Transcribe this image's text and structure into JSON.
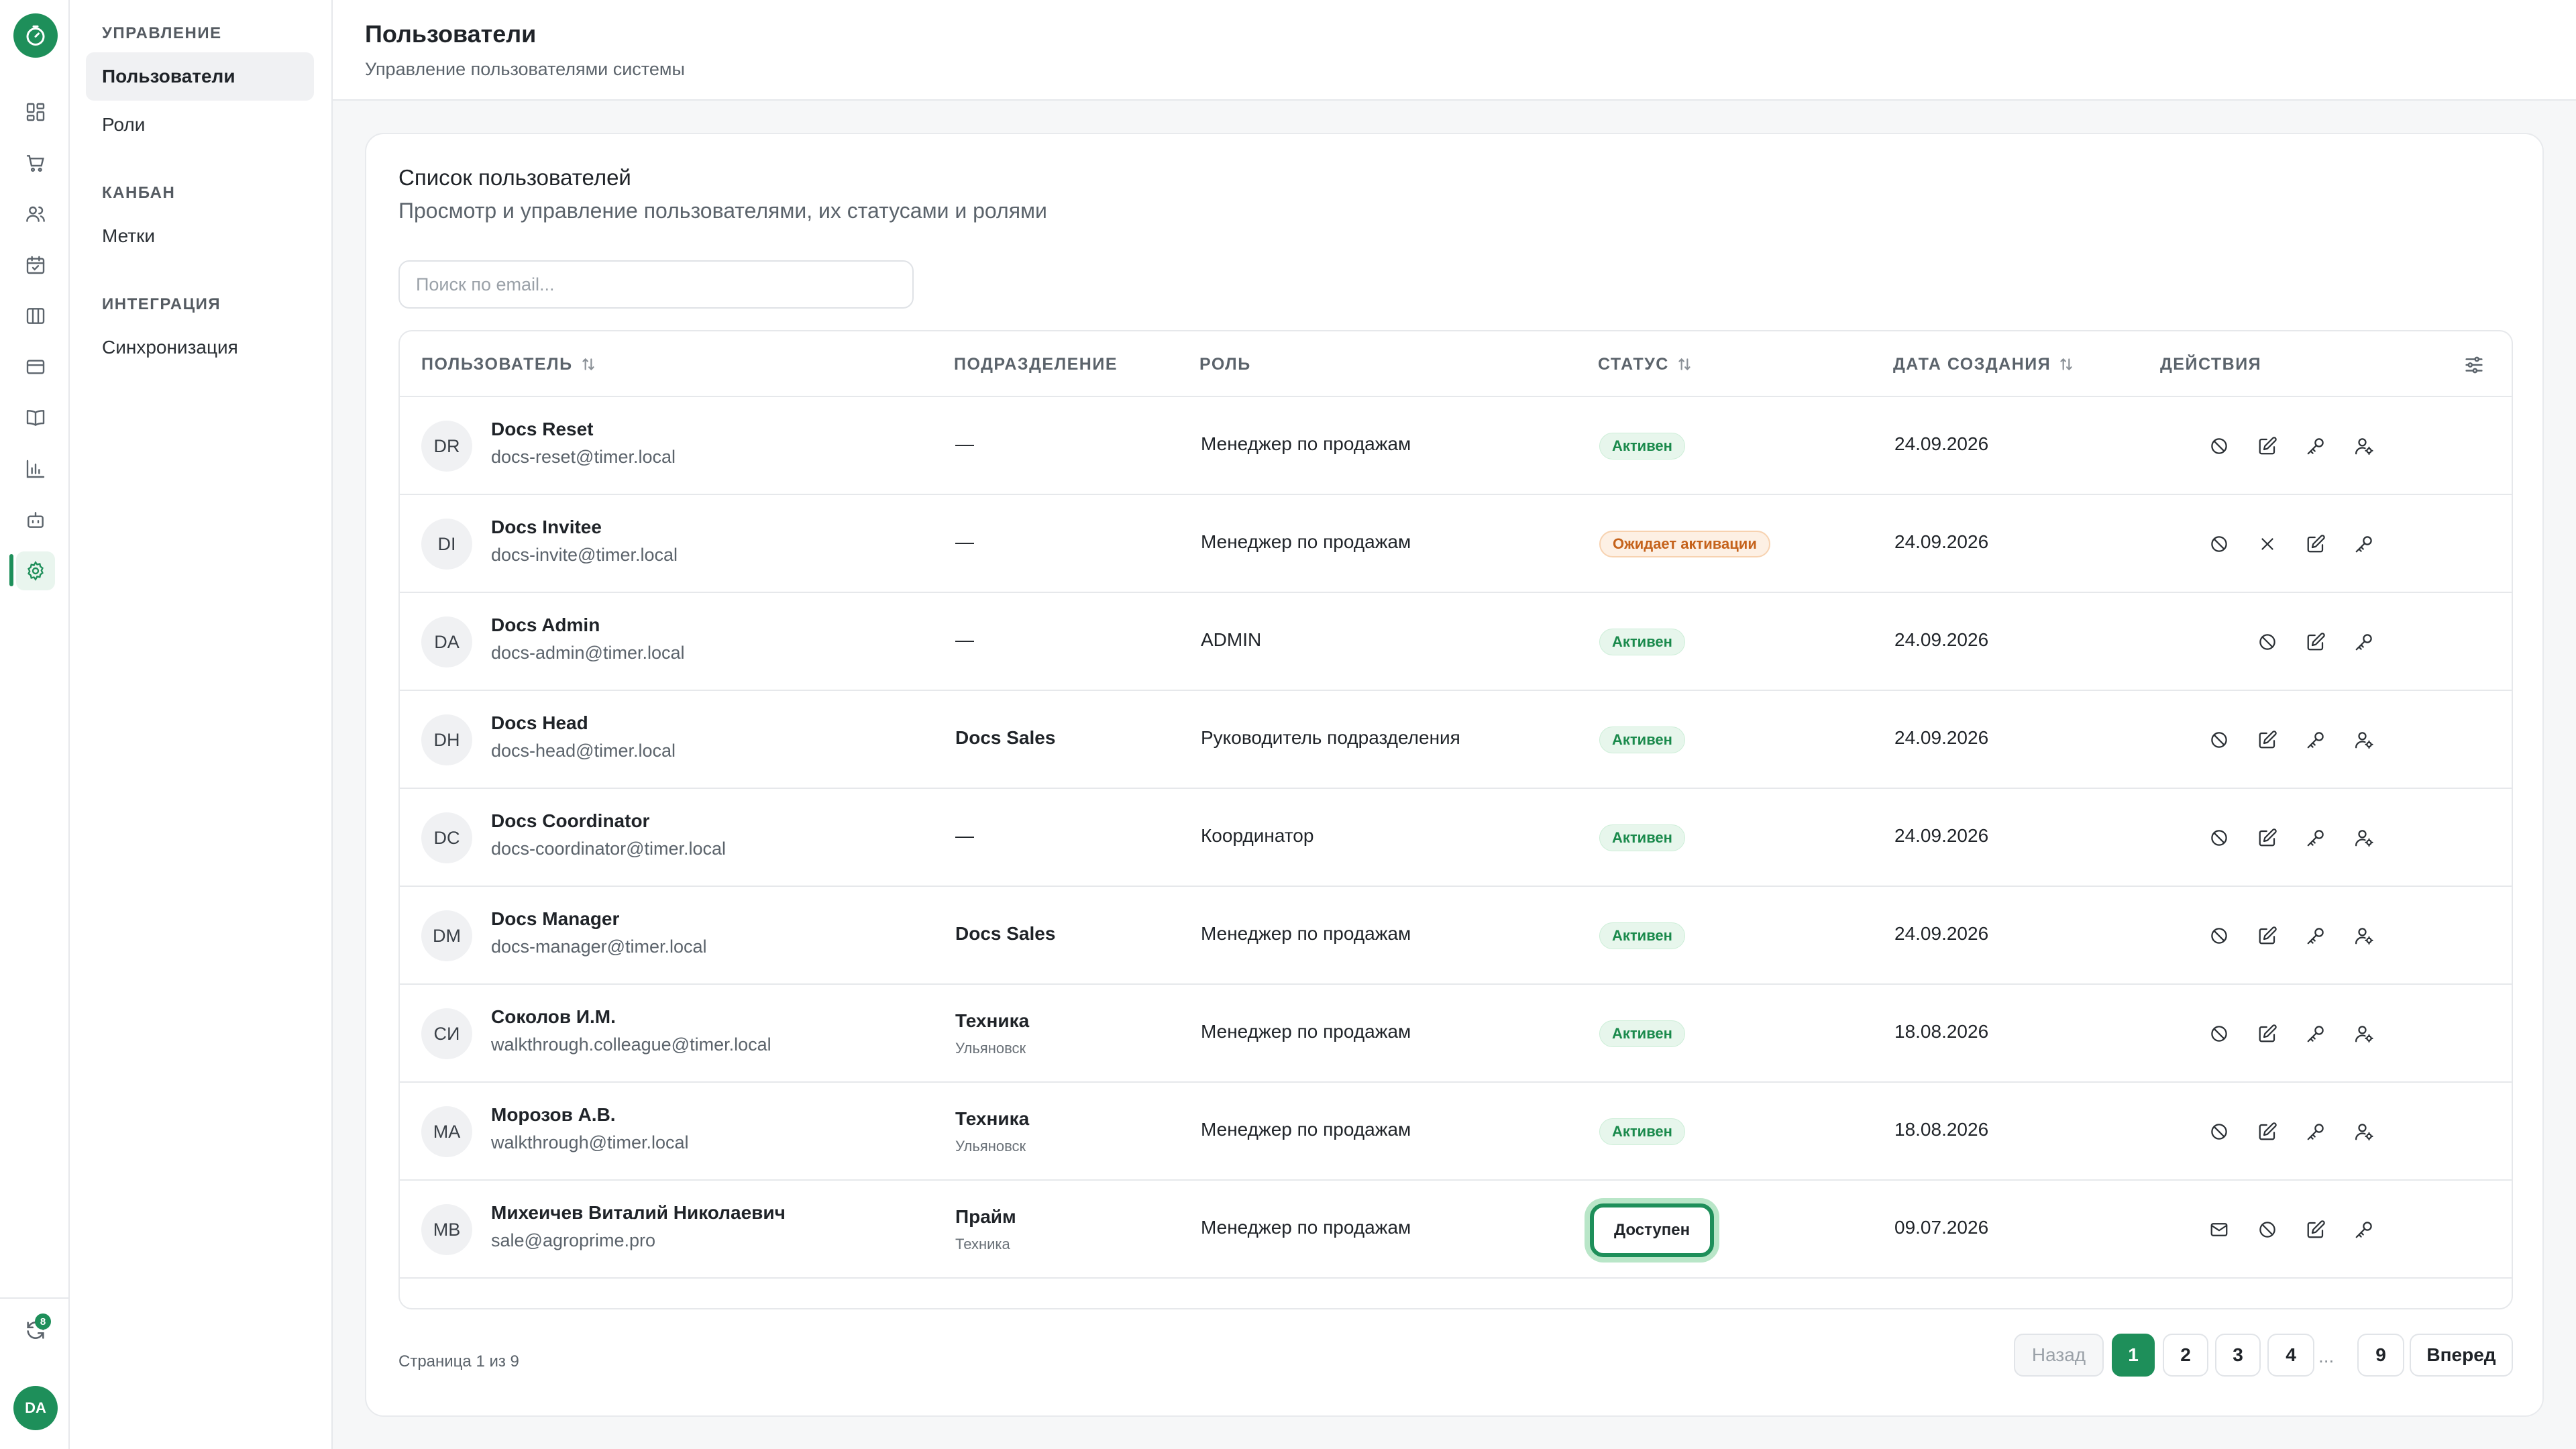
{
  "sidebar": {
    "sections": [
      {
        "title": "УПРАВЛЕНИЕ",
        "items": [
          {
            "label": "Пользователи"
          },
          {
            "label": "Роли"
          }
        ]
      },
      {
        "title": "КАНБАН",
        "items": [
          {
            "label": "Метки"
          }
        ]
      },
      {
        "title": "ИНТЕГРАЦИЯ",
        "items": [
          {
            "label": "Синхронизация"
          }
        ]
      }
    ]
  },
  "rail": {
    "icons": [
      "timer-logo-icon",
      "dashboard-icon",
      "cart-icon",
      "users-icon",
      "calendar-check-icon",
      "columns-icon",
      "card-icon",
      "book-icon",
      "bar-chart-icon",
      "bot-icon",
      "settings-icon"
    ],
    "sync_badge": "8",
    "user_initials": "DA"
  },
  "header": {
    "title": "Пользователи",
    "subtitle": "Управление пользователями системы"
  },
  "card": {
    "title": "Список пользователей",
    "subtitle": "Просмотр и управление пользователями, их статусами и ролями",
    "search_placeholder": "Поиск по email..."
  },
  "table": {
    "columns": {
      "user": "ПОЛЬЗОВАТЕЛЬ",
      "dept": "ПОДРАЗДЕЛЕНИЕ",
      "role": "РОЛЬ",
      "status": "СТАТУС",
      "created": "ДАТА СОЗДАНИЯ",
      "actions": "ДЕЙСТВИЯ"
    },
    "rows": [
      {
        "initials": "DR",
        "name": "Docs Reset",
        "email": "docs-reset@timer.local",
        "dept": "—",
        "dept_sub": "",
        "role": "Менеджер по продажам",
        "status": "Активен",
        "created": "24.09.2026"
      },
      {
        "initials": "DI",
        "name": "Docs Invitee",
        "email": "docs-invite@timer.local",
        "dept": "—",
        "dept_sub": "",
        "role": "Менеджер по продажам",
        "status": "Ожидает активации",
        "created": "24.09.2026"
      },
      {
        "initials": "DA",
        "name": "Docs Admin",
        "email": "docs-admin@timer.local",
        "dept": "—",
        "dept_sub": "",
        "role": "ADMIN",
        "status": "Активен",
        "created": "24.09.2026"
      },
      {
        "initials": "DH",
        "name": "Docs Head",
        "email": "docs-head@timer.local",
        "dept": "Docs Sales",
        "dept_sub": "",
        "role": "Руководитель подразделения",
        "status": "Активен",
        "created": "24.09.2026"
      },
      {
        "initials": "DC",
        "name": "Docs Coordinator",
        "email": "docs-coordinator@timer.local",
        "dept": "—",
        "dept_sub": "",
        "role": "Координатор",
        "status": "Активен",
        "created": "24.09.2026"
      },
      {
        "initials": "DM",
        "name": "Docs Manager",
        "email": "docs-manager@timer.local",
        "dept": "Docs Sales",
        "dept_sub": "",
        "role": "Менеджер по продажам",
        "status": "Активен",
        "created": "24.09.2026"
      },
      {
        "initials": "СИ",
        "name": "Соколов И.М.",
        "email": "walkthrough.colleague@timer.local",
        "dept": "Техника",
        "dept_sub": "Ульяновск",
        "role": "Менеджер по продажам",
        "status": "Активен",
        "created": "18.08.2026"
      },
      {
        "initials": "МА",
        "name": "Морозов А.В.",
        "email": "walkthrough@timer.local",
        "dept": "Техника",
        "dept_sub": "Ульяновск",
        "role": "Менеджер по продажам",
        "status": "Активен",
        "created": "18.08.2026"
      },
      {
        "initials": "МВ",
        "name": "Михеичев Виталий Николаевич",
        "email": "sale@agroprime.pro",
        "dept": "Прайм",
        "dept_sub": "Техника",
        "role": "Менеджер по продажам",
        "status": "Доступен",
        "created": "09.07.2026"
      }
    ]
  },
  "pagination": {
    "info": "Страница 1 из 9",
    "prev": "Назад",
    "pages": [
      "1",
      "2",
      "3",
      "4"
    ],
    "ellipsis": "...",
    "last": "9",
    "next": "Вперед"
  },
  "colors": {
    "accent": "#1e8f5a",
    "active_badge_bg": "#e7f6ec",
    "pending_badge_bg": "#fdf0e4"
  }
}
